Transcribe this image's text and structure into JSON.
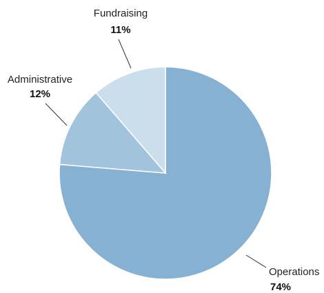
{
  "chart_data": {
    "type": "pie",
    "title": "",
    "slices": [
      {
        "label": "Operations",
        "value": 74,
        "value_label": "74%",
        "color": "#86b1d2"
      },
      {
        "label": "Administrative",
        "value": 12,
        "value_label": "12%",
        "color": "#a2c3dc"
      },
      {
        "label": "Fundraising",
        "value": 11,
        "value_label": "11%",
        "color": "#cadeeb"
      }
    ],
    "legend": "none",
    "start_angle_deg": 0,
    "direction": "clockwise"
  }
}
